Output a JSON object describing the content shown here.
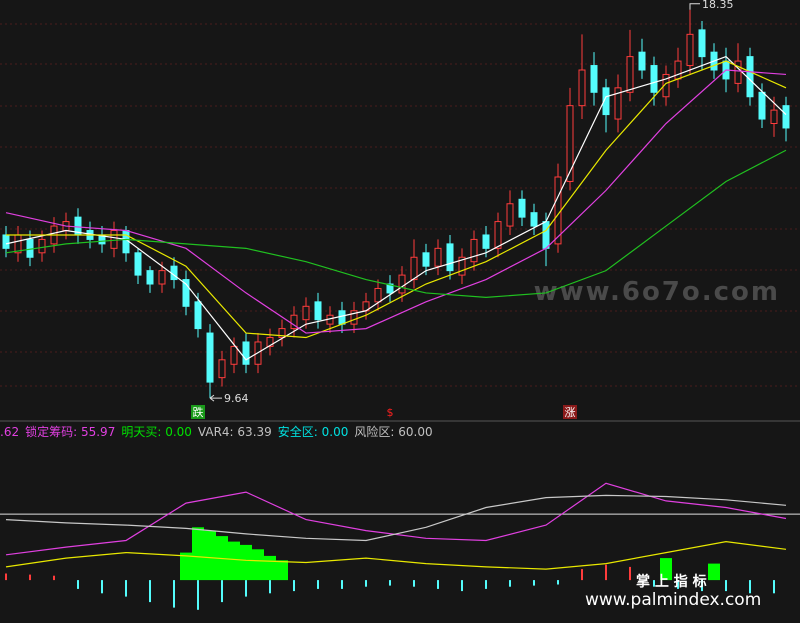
{
  "chart_data": [
    {
      "type": "candlestick",
      "ylim": [
        9.15,
        18.57
      ],
      "up_color": "#ff3c3c",
      "down_color": "#54fcfc",
      "open": [
        13.3,
        12.9,
        13.2,
        12.9,
        13.1,
        13.4,
        13.7,
        13.4,
        13.3,
        13.0,
        13.4,
        12.9,
        12.5,
        12.2,
        12.6,
        12.3,
        11.8,
        11.1,
        10.1,
        10.4,
        10.9,
        10.4,
        10.8,
        11.0,
        11.2,
        11.4,
        11.8,
        11.3,
        11.6,
        11.3,
        11.6,
        11.8,
        12.2,
        12.0,
        12.3,
        12.9,
        12.6,
        13.1,
        12.4,
        12.7,
        13.3,
        13.0,
        13.5,
        14.1,
        13.8,
        13.6,
        13.1,
        14.5,
        16.2,
        17.1,
        16.6,
        15.9,
        16.5,
        17.4,
        17.1,
        16.4,
        16.8,
        17.1,
        17.9,
        17.4,
        17.2,
        16.7,
        17.3,
        16.5,
        15.8,
        16.2
      ],
      "high": [
        13.5,
        13.5,
        13.4,
        13.4,
        13.7,
        13.8,
        13.9,
        13.6,
        13.5,
        13.6,
        13.5,
        13.0,
        12.6,
        12.7,
        12.8,
        12.5,
        12.0,
        11.3,
        10.7,
        11.0,
        11.1,
        11.1,
        11.2,
        11.4,
        11.7,
        11.9,
        12.0,
        11.7,
        11.8,
        11.8,
        12.0,
        12.3,
        12.4,
        12.6,
        13.2,
        13.1,
        13.2,
        13.3,
        13.0,
        13.4,
        13.5,
        13.8,
        14.3,
        14.3,
        14.0,
        13.8,
        14.9,
        16.6,
        17.8,
        17.4,
        16.8,
        16.9,
        17.9,
        17.7,
        17.3,
        17.1,
        17.5,
        18.35,
        18.1,
        17.6,
        17.5,
        17.6,
        17.5,
        16.7,
        16.4,
        16.4
      ],
      "low": [
        12.8,
        12.7,
        12.6,
        12.7,
        12.9,
        13.2,
        13.1,
        13.0,
        12.9,
        12.8,
        12.7,
        12.2,
        12.0,
        12.0,
        12.1,
        11.5,
        11.0,
        9.64,
        9.9,
        10.2,
        10.2,
        10.2,
        10.6,
        10.8,
        11.0,
        11.2,
        11.2,
        11.1,
        11.1,
        11.1,
        11.4,
        11.6,
        11.8,
        11.8,
        12.1,
        12.4,
        12.4,
        12.3,
        12.2,
        12.5,
        12.8,
        12.8,
        13.3,
        13.5,
        13.3,
        12.6,
        12.9,
        14.3,
        15.9,
        16.2,
        15.6,
        15.6,
        16.3,
        16.8,
        16.2,
        16.2,
        16.6,
        16.9,
        17.0,
        16.8,
        16.5,
        16.5,
        16.2,
        15.7,
        15.5,
        15.4
      ],
      "close": [
        13.0,
        13.3,
        12.8,
        13.2,
        13.5,
        13.6,
        13.3,
        13.2,
        13.1,
        13.4,
        12.9,
        12.4,
        12.2,
        12.5,
        12.3,
        11.7,
        11.2,
        10.0,
        10.5,
        10.8,
        10.4,
        10.9,
        11.0,
        11.2,
        11.5,
        11.7,
        11.4,
        11.5,
        11.3,
        11.6,
        11.8,
        12.1,
        12.0,
        12.4,
        12.8,
        12.6,
        13.0,
        12.5,
        12.8,
        13.2,
        13.0,
        13.6,
        14.0,
        13.7,
        13.5,
        13.0,
        14.6,
        16.2,
        17.0,
        16.5,
        16.0,
        16.6,
        17.3,
        17.0,
        16.5,
        16.9,
        17.2,
        17.8,
        17.3,
        17.0,
        16.8,
        17.2,
        16.4,
        15.9,
        16.1,
        15.7
      ],
      "ma_x": [
        0,
        5,
        10,
        15,
        20,
        25,
        30,
        35,
        40,
        45,
        50,
        55,
        60,
        65
      ],
      "series": [
        {
          "color": "#ffffff",
          "values": [
            13.1,
            13.4,
            13.2,
            12.2,
            10.5,
            11.3,
            11.6,
            12.5,
            12.9,
            13.6,
            16.4,
            16.8,
            17.3,
            16.0
          ]
        },
        {
          "color": "#e8e800",
          "values": [
            13.3,
            13.3,
            13.3,
            12.6,
            11.1,
            11.0,
            11.5,
            12.2,
            12.7,
            13.4,
            15.2,
            16.7,
            17.2,
            16.6
          ]
        },
        {
          "color": "#e040e0",
          "values": [
            13.8,
            13.5,
            13.4,
            13.0,
            12.0,
            11.1,
            11.2,
            11.8,
            12.3,
            13.0,
            14.3,
            15.8,
            17.0,
            16.9
          ]
        },
        {
          "color": "#20c020",
          "values": [
            12.9,
            13.1,
            13.2,
            13.1,
            13.0,
            12.7,
            12.3,
            12.0,
            11.9,
            12.0,
            12.5,
            13.5,
            14.5,
            15.2
          ]
        }
      ],
      "signals": [
        {
          "index": 16,
          "text": "跌",
          "color": "#ffffff",
          "background": "#1a9a1a"
        },
        {
          "index": 32,
          "text": "$",
          "color": "#ff2020",
          "background": "none"
        },
        {
          "index": 47,
          "text": "涨",
          "color": "#ffffff",
          "background": "#8a1a1a"
        }
      ]
    },
    {
      "type": "indicator",
      "ylim": [
        -39,
        141
      ],
      "legend_prefix": ".62",
      "legend": [
        {
          "name": "锁定筹码:",
          "value": 55.97,
          "color": "#e040e0"
        },
        {
          "name": "明天买:",
          "value": {
            "value": 0,
            "label": "0.00"
          },
          "color": "#00e000"
        },
        {
          "name": "VAR4:",
          "value": 63.39,
          "color": "#c0c0c0"
        },
        {
          "name": "安全区:",
          "value": {
            "value": 0,
            "label": "0.00"
          },
          "color": "#00e0e0"
        },
        {
          "name": "风险区:",
          "value": {
            "value": 60,
            "label": "60.00"
          },
          "color": "#c0c0c0"
        }
      ],
      "line_x": [
        0,
        5,
        10,
        15,
        20,
        25,
        30,
        35,
        40,
        45,
        50,
        55,
        60,
        65
      ],
      "series": [
        {
          "color": "#e040e0",
          "values": [
            23,
            30,
            36,
            70,
            80,
            55,
            45,
            38,
            36,
            50,
            88,
            72,
            66,
            56
          ]
        },
        {
          "color": "#c8c8c8",
          "values": [
            55,
            52,
            50,
            47,
            42,
            38,
            36,
            48,
            66,
            75,
            77,
            76,
            73,
            68
          ]
        },
        {
          "color": "#e8e800",
          "values": [
            12,
            20,
            25,
            22,
            18,
            16,
            20,
            15,
            12,
            10,
            15,
            25,
            35,
            28
          ]
        }
      ],
      "buy_x": [
        15,
        16,
        17,
        18,
        19,
        20,
        21,
        22,
        23,
        55,
        59
      ],
      "buy_values": [
        25,
        48,
        45,
        40,
        35,
        32,
        28,
        22,
        18,
        20,
        15
      ],
      "buy_color": "#00ff00",
      "bar_x": [
        0,
        2,
        4,
        6,
        8,
        10,
        12,
        14,
        16,
        18,
        20,
        22,
        24,
        26,
        28,
        30,
        32,
        34,
        36,
        38,
        40,
        42,
        44,
        46,
        48,
        50,
        52,
        54,
        56,
        58,
        60,
        62,
        64
      ],
      "bar_values": [
        6,
        5,
        4,
        -8,
        -12,
        -15,
        -20,
        -25,
        -27,
        -20,
        -15,
        -12,
        -10,
        -8,
        -8,
        -6,
        -5,
        -6,
        -8,
        -10,
        -8,
        -6,
        -5,
        -4,
        10,
        14,
        12,
        -6,
        -8,
        -10,
        -10,
        -12,
        -12
      ],
      "pos_color": "#ff3c3c",
      "neg_color": "#54fcfc"
    }
  ],
  "watermarks": {
    "site": "www.6o7o.com",
    "brand": "掌 上 指 标",
    "url": "www.palmindex.com"
  }
}
